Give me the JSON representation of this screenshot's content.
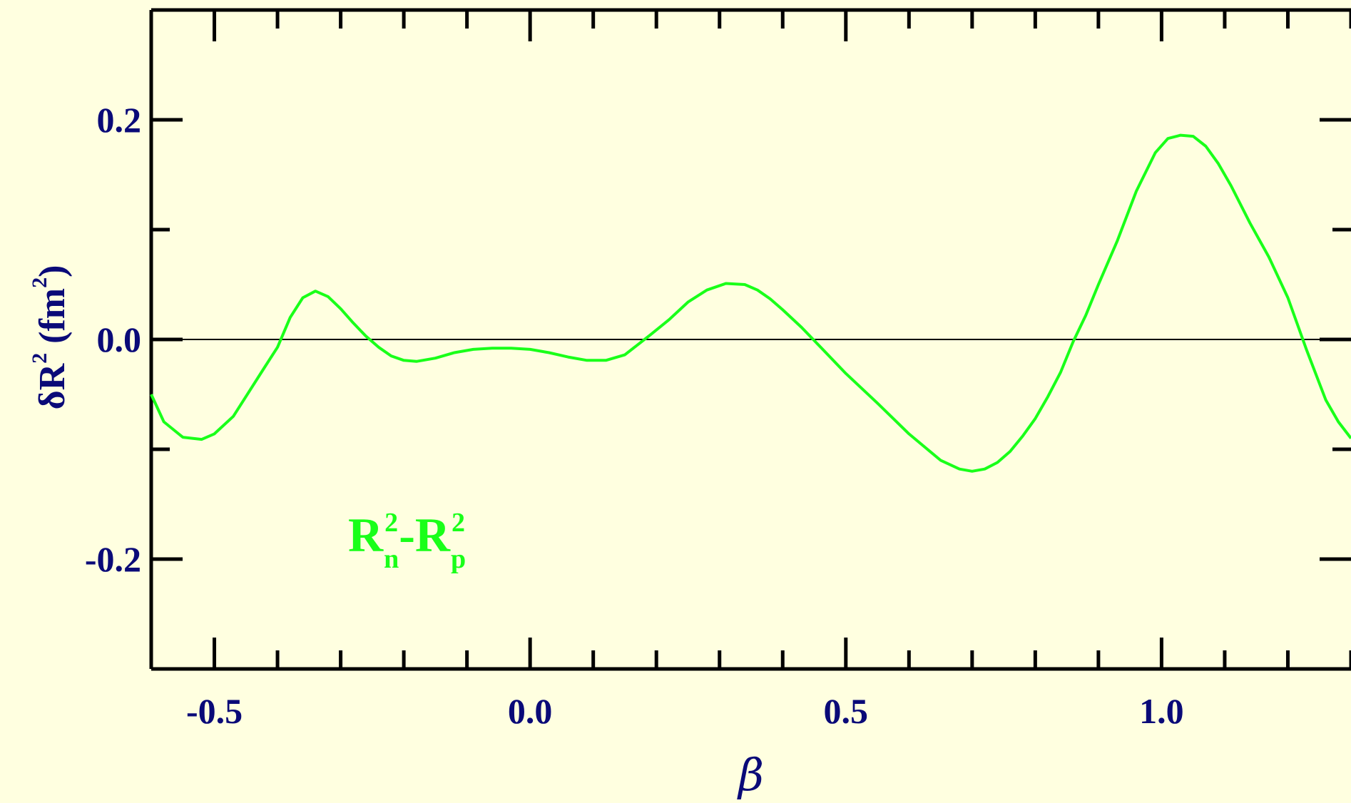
{
  "chart_data": {
    "type": "line",
    "xlabel": "β",
    "ylabel": {
      "prefix": "δR",
      "sup": "2",
      "unit_open": " (fm",
      "unit_sup": "2",
      "unit_close": ")"
    },
    "xlim": [
      -0.6,
      1.3
    ],
    "ylim": [
      -0.3,
      0.3
    ],
    "x_ticks": [
      -0.5,
      0.0,
      0.5,
      1.0
    ],
    "x_tick_labels": [
      "-0.5",
      "0.0",
      "0.5",
      "1.0"
    ],
    "y_ticks": [
      -0.2,
      0.0,
      0.2
    ],
    "y_tick_labels": [
      "-0.2",
      "0.0",
      "0.2"
    ],
    "reference_line_y": 0.0,
    "annotation": {
      "base1": "R",
      "sup1": "2",
      "sub1": "n",
      "dash": "-",
      "base2": "R",
      "sup2": "2",
      "sub2": "p"
    },
    "colors": {
      "background": "#ffffe0",
      "series": "#19ff19",
      "text": "#0a0a78",
      "axes": "#000000"
    },
    "series": [
      {
        "x": [
          -0.6,
          -0.58,
          -0.55,
          -0.52,
          -0.5,
          -0.47,
          -0.45,
          -0.42,
          -0.4,
          -0.38,
          -0.36,
          -0.34,
          -0.32,
          -0.3,
          -0.28,
          -0.26,
          -0.24,
          -0.22,
          -0.2,
          -0.18,
          -0.15,
          -0.12,
          -0.09,
          -0.06,
          -0.03,
          0.0,
          0.03,
          0.06,
          0.09,
          0.12,
          0.15,
          0.17,
          0.19,
          0.22,
          0.25,
          0.28,
          0.31,
          0.34,
          0.36,
          0.38,
          0.4,
          0.43,
          0.46,
          0.5,
          0.55,
          0.6,
          0.65,
          0.68,
          0.7,
          0.72,
          0.74,
          0.76,
          0.78,
          0.8,
          0.82,
          0.84,
          0.86,
          0.88,
          0.9,
          0.93,
          0.96,
          0.99,
          1.01,
          1.03,
          1.05,
          1.07,
          1.09,
          1.11,
          1.14,
          1.17,
          1.2,
          1.23,
          1.26,
          1.28,
          1.3
        ],
        "y": [
          -0.05,
          -0.075,
          -0.089,
          -0.091,
          -0.086,
          -0.07,
          -0.052,
          -0.025,
          -0.007,
          0.02,
          0.038,
          0.044,
          0.039,
          0.028,
          0.015,
          0.003,
          -0.007,
          -0.015,
          -0.019,
          -0.02,
          -0.017,
          -0.012,
          -0.009,
          -0.008,
          -0.008,
          -0.009,
          -0.012,
          -0.016,
          -0.019,
          -0.019,
          -0.014,
          -0.005,
          0.004,
          0.018,
          0.034,
          0.045,
          0.051,
          0.05,
          0.045,
          0.037,
          0.027,
          0.011,
          -0.007,
          -0.031,
          -0.058,
          -0.086,
          -0.11,
          -0.118,
          -0.12,
          -0.118,
          -0.112,
          -0.102,
          -0.088,
          -0.072,
          -0.052,
          -0.03,
          -0.002,
          0.022,
          0.05,
          0.09,
          0.135,
          0.17,
          0.183,
          0.186,
          0.185,
          0.176,
          0.16,
          0.14,
          0.106,
          0.075,
          0.038,
          -0.01,
          -0.055,
          -0.075,
          -0.09
        ]
      }
    ]
  }
}
